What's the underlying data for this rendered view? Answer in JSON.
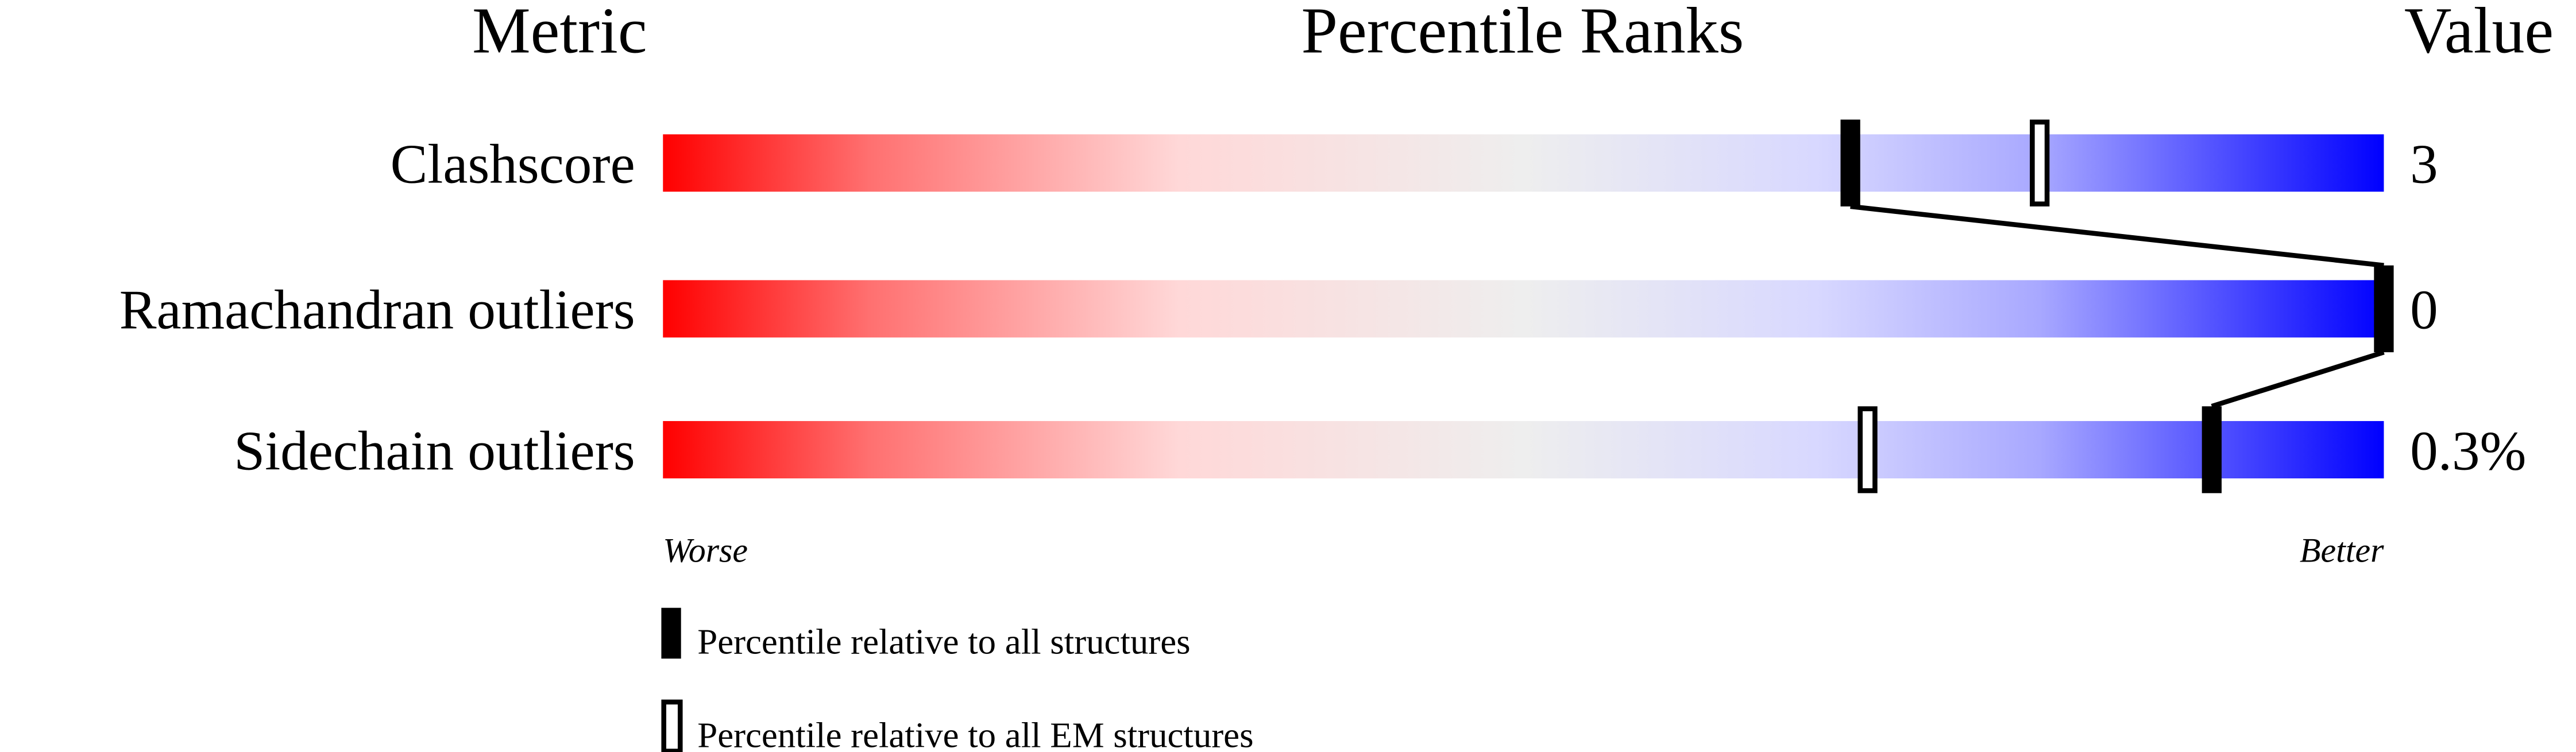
{
  "chart_data": {
    "type": "percentile-bar",
    "headers": {
      "metric": "Metric",
      "ranks": "Percentile Ranks",
      "value": "Value"
    },
    "xlim": [
      0,
      100
    ],
    "axis_labels": {
      "left": "Worse",
      "right": "Better"
    },
    "gradient_colors": [
      "#ff0000",
      "#eeeeee",
      "#d8d8ff",
      "#0000ff"
    ],
    "metrics": [
      {
        "name": "Clashscore",
        "value": "3",
        "percentile_all": 69,
        "percentile_em": 80
      },
      {
        "name": "Ramachandran outliers",
        "value": "0",
        "percentile_all": 100,
        "percentile_em": 100
      },
      {
        "name": "Sidechain outliers",
        "value": "0.3%",
        "percentile_all": 90,
        "percentile_em": 70
      }
    ],
    "legend": {
      "all": "Percentile relative to all structures",
      "em": "Percentile relative to all EM structures"
    }
  }
}
